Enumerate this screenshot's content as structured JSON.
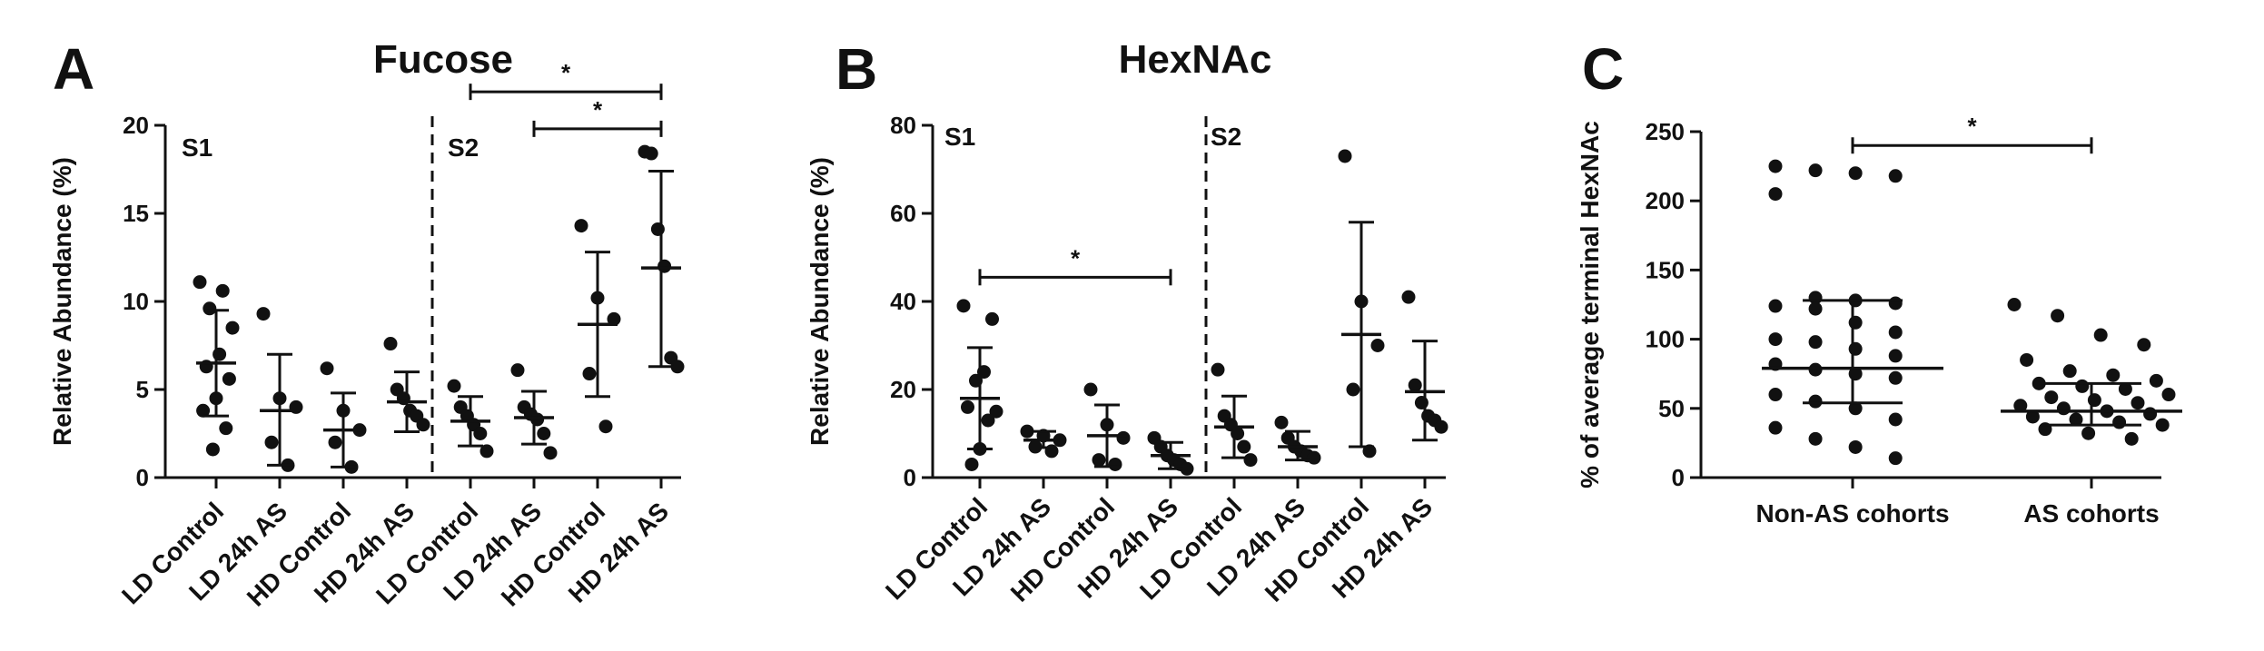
{
  "chart_data": [
    {
      "type": "scatter",
      "panel_label": "A",
      "title": "Fucose",
      "ylabel": "Relative Abundance (%)",
      "ylim": [
        0,
        20
      ],
      "yticks": [
        0,
        5,
        10,
        15,
        20
      ],
      "segment_labels": [
        "S1",
        "S2"
      ],
      "divider_after_index": 3,
      "categories": [
        "LD Control",
        "LD 24h AS",
        "HD Control",
        "HD 24h AS",
        "LD Control",
        "LD 24h AS",
        "HD Control",
        "HD 24h AS"
      ],
      "groups": [
        {
          "points": [
            11.1,
            10.6,
            9.6,
            8.5,
            7.0,
            6.3,
            5.6,
            4.5,
            3.8,
            2.8,
            1.6
          ],
          "mean": 6.5,
          "sd_low": 3.5,
          "sd_high": 9.5
        },
        {
          "points": [
            9.3,
            4.5,
            4.0,
            2.0,
            0.7
          ],
          "mean": 3.8,
          "sd_low": 0.7,
          "sd_high": 7.0
        },
        {
          "points": [
            6.2,
            3.8,
            2.7,
            2.0,
            0.6
          ],
          "mean": 2.7,
          "sd_low": 0.6,
          "sd_high": 4.8
        },
        {
          "points": [
            7.6,
            5.0,
            4.5,
            3.8,
            3.5,
            3.0
          ],
          "mean": 4.3,
          "sd_low": 2.6,
          "sd_high": 6.0
        },
        {
          "points": [
            5.2,
            4.0,
            3.5,
            3.0,
            2.5,
            1.5
          ],
          "mean": 3.2,
          "sd_low": 1.8,
          "sd_high": 4.6
        },
        {
          "points": [
            6.1,
            4.0,
            3.6,
            3.3,
            2.5,
            1.4
          ],
          "mean": 3.4,
          "sd_low": 1.9,
          "sd_high": 4.9
        },
        {
          "points": [
            14.3,
            10.2,
            9.0,
            5.9,
            2.9
          ],
          "mean": 8.7,
          "sd_low": 4.6,
          "sd_high": 12.8
        },
        {
          "points": [
            18.5,
            18.4,
            14.1,
            12.0,
            6.8,
            6.3
          ],
          "mean": 11.9,
          "sd_low": 6.3,
          "sd_high": 17.4
        }
      ],
      "significance": [
        {
          "from": 4,
          "to": 7,
          "y": 21.9,
          "label": "*"
        },
        {
          "from": 5,
          "to": 7,
          "y": 19.8,
          "label": "*"
        }
      ]
    },
    {
      "type": "scatter",
      "panel_label": "B",
      "title": "HexNAc",
      "ylabel": "Relative Abundance (%)",
      "ylim": [
        0,
        80
      ],
      "yticks": [
        0,
        20,
        40,
        60,
        80
      ],
      "segment_labels": [
        "S1",
        "S2"
      ],
      "divider_after_index": 3,
      "categories": [
        "LD Control",
        "LD 24h AS",
        "HD Control",
        "HD 24h AS",
        "LD Control",
        "LD 24h AS",
        "HD Control",
        "HD 24h AS"
      ],
      "groups": [
        {
          "points": [
            39.0,
            36.0,
            24.0,
            22.0,
            16.0,
            15.0,
            13.0,
            6.5,
            3.0
          ],
          "mean": 18.0,
          "sd_low": 6.5,
          "sd_high": 29.5
        },
        {
          "points": [
            10.5,
            9.5,
            8.5,
            7.0,
            6.0
          ],
          "mean": 8.5,
          "sd_low": 6.8,
          "sd_high": 10.5
        },
        {
          "points": [
            20.0,
            12.0,
            9.0,
            4.0,
            3.0
          ],
          "mean": 9.5,
          "sd_low": 2.5,
          "sd_high": 16.5
        },
        {
          "points": [
            9.0,
            7.0,
            5.0,
            4.0,
            3.0,
            2.0
          ],
          "mean": 5.0,
          "sd_low": 2.0,
          "sd_high": 8.0
        },
        {
          "points": [
            24.5,
            14.0,
            12.0,
            10.0,
            7.0,
            4.0
          ],
          "mean": 11.5,
          "sd_low": 4.5,
          "sd_high": 18.5
        },
        {
          "points": [
            12.5,
            9.0,
            7.0,
            6.0,
            5.0,
            4.5
          ],
          "mean": 7.0,
          "sd_low": 4.0,
          "sd_high": 10.5
        },
        {
          "points": [
            73.0,
            40.0,
            30.0,
            20.0,
            6.0
          ],
          "mean": 32.5,
          "sd_low": 7.0,
          "sd_high": 58.0
        },
        {
          "points": [
            41.0,
            21.0,
            17.0,
            14.0,
            13.0,
            11.5
          ],
          "mean": 19.5,
          "sd_low": 8.5,
          "sd_high": 31.0
        }
      ],
      "significance": [
        {
          "from": 0,
          "to": 3,
          "y": 45.5,
          "label": "*"
        }
      ]
    },
    {
      "type": "scatter",
      "panel_label": "C",
      "title": "",
      "ylabel": "% of average terminal HexNAc",
      "ylim": [
        0,
        250
      ],
      "yticks": [
        0,
        50,
        100,
        150,
        200,
        250
      ],
      "categories": [
        "Non-AS cohorts",
        "AS cohorts"
      ],
      "groups": [
        {
          "points": [
            225,
            222,
            220,
            218,
            205,
            130,
            128,
            126,
            124,
            122,
            112,
            105,
            100,
            98,
            93,
            88,
            82,
            78,
            75,
            72,
            60,
            55,
            50,
            42,
            36,
            28,
            22,
            14
          ],
          "mean": 79,
          "sd_low": 54,
          "sd_high": 128
        },
        {
          "points": [
            125,
            117,
            103,
            96,
            85,
            77,
            74,
            70,
            68,
            66,
            64,
            60,
            58,
            56,
            54,
            52,
            50,
            48,
            46,
            44,
            42,
            40,
            38,
            35,
            32,
            28
          ],
          "mean": 48,
          "sd_low": 38,
          "sd_high": 68
        }
      ],
      "significance": [
        {
          "from": 0,
          "to": 1,
          "y": 240,
          "label": "*"
        }
      ]
    }
  ]
}
